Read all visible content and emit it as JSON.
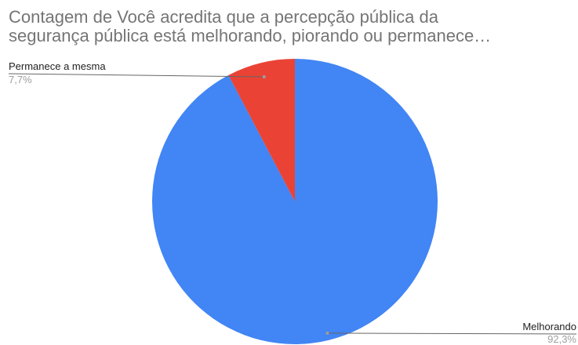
{
  "chart_data": {
    "type": "pie",
    "title_lines": [
      "Contagem de Você acredita que a percepção pública da",
      "segurança pública está melhorando, piorando ou permanece…"
    ],
    "slices": [
      {
        "name": "Melhorando",
        "value": 92.3,
        "label": "92,3%",
        "color": "#4285f4"
      },
      {
        "name": "Permanece a mesma",
        "value": 7.7,
        "label": "7,7%",
        "color": "#ea4335"
      }
    ],
    "legend": "none"
  }
}
